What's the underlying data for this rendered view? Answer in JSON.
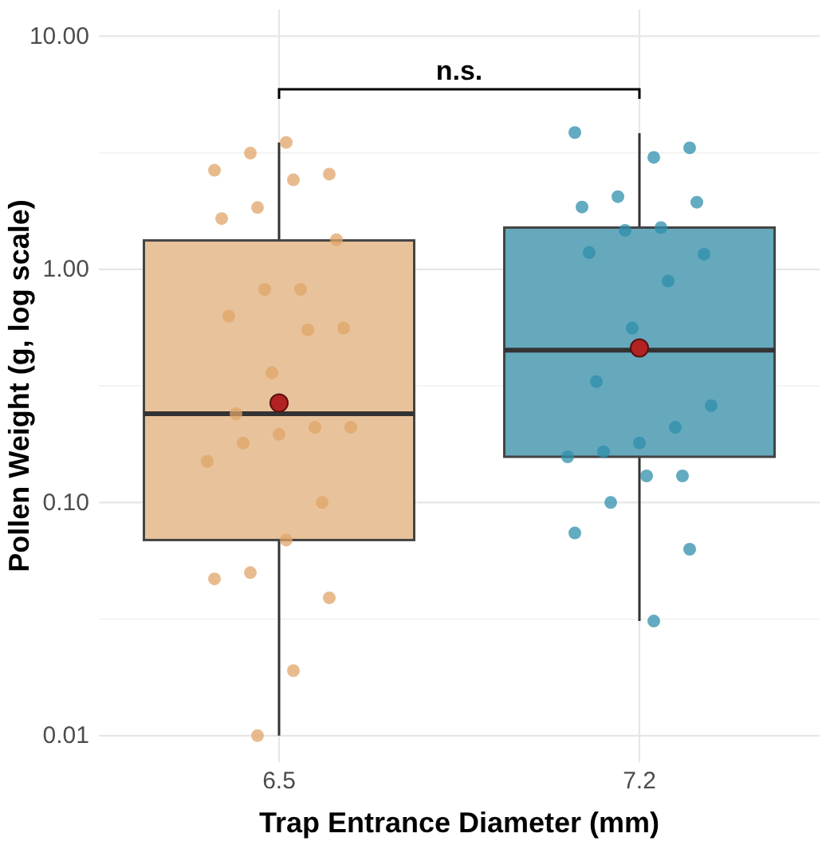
{
  "chart_data": {
    "type": "box",
    "xlabel": "Trap Entrance Diameter (mm)",
    "ylabel": "Pollen Weight (g, log scale)",
    "categories": [
      "6.5",
      "7.2"
    ],
    "log": "y",
    "grid": true,
    "ylim": [
      0.0077,
      13
    ],
    "yticks": [
      {
        "value": 0.01,
        "label": "0.01"
      },
      {
        "value": 0.0316,
        "label": null
      },
      {
        "value": 0.1,
        "label": "0.10"
      },
      {
        "value": 0.316,
        "label": null
      },
      {
        "value": 1,
        "label": "1.00"
      },
      {
        "value": 3.16,
        "label": null
      },
      {
        "value": 10,
        "label": "10.00"
      }
    ],
    "annotations": [
      "n.s."
    ],
    "series": [
      {
        "colors": [
          "#e8c29a",
          "#66a8bc"
        ],
        "boxes": [
          {
            "low": 0.01,
            "q1": 0.069,
            "median": 0.24,
            "q3": 1.33,
            "high": 3.5
          },
          {
            "low": 0.031,
            "q1": 0.157,
            "median": 0.45,
            "q3": 1.51,
            "high": 3.84
          }
        ]
      },
      {
        "type": "scatter",
        "color": "#e0a468",
        "x": [
          "6.5",
          "6.5",
          "6.5",
          "6.5",
          "6.5",
          "6.5",
          "6.5",
          "6.5",
          "6.5",
          "6.5",
          "6.5",
          "6.5",
          "6.5",
          "6.5",
          "6.5",
          "6.5",
          "6.5",
          "6.5",
          "6.5",
          "6.5",
          "6.5",
          "6.5",
          "6.5",
          "6.5",
          "6.5",
          "6.5",
          "6.5"
        ],
        "values": [
          3.5,
          3.15,
          2.66,
          2.56,
          2.42,
          1.84,
          1.65,
          1.34,
          0.82,
          0.82,
          0.63,
          0.56,
          0.55,
          0.36,
          0.24,
          0.21,
          0.21,
          0.196,
          0.18,
          0.15,
          0.1,
          0.069,
          0.05,
          0.047,
          0.039,
          0.019,
          0.01
        ]
      },
      {
        "type": "scatter",
        "color": "#2f8fab",
        "x": [
          "7.2",
          "7.2",
          "7.2",
          "7.2",
          "7.2",
          "7.2",
          "7.2",
          "7.2",
          "7.2",
          "7.2",
          "7.2",
          "7.2",
          "7.2",
          "7.2",
          "7.2",
          "7.2",
          "7.2",
          "7.2",
          "7.2",
          "7.2",
          "7.2",
          "7.2",
          "7.2",
          "7.2"
        ],
        "values": [
          3.86,
          3.32,
          3.02,
          2.05,
          1.85,
          1.94,
          1.51,
          1.47,
          1.18,
          1.16,
          0.89,
          0.56,
          0.33,
          0.26,
          0.21,
          0.18,
          0.165,
          0.157,
          0.13,
          0.13,
          0.1,
          0.074,
          0.063,
          0.031
        ]
      },
      {
        "type": "scatter",
        "color": "#b22222",
        "x": [
          "6.5",
          "7.2"
        ],
        "values": [
          0.267,
          0.46
        ]
      }
    ]
  }
}
